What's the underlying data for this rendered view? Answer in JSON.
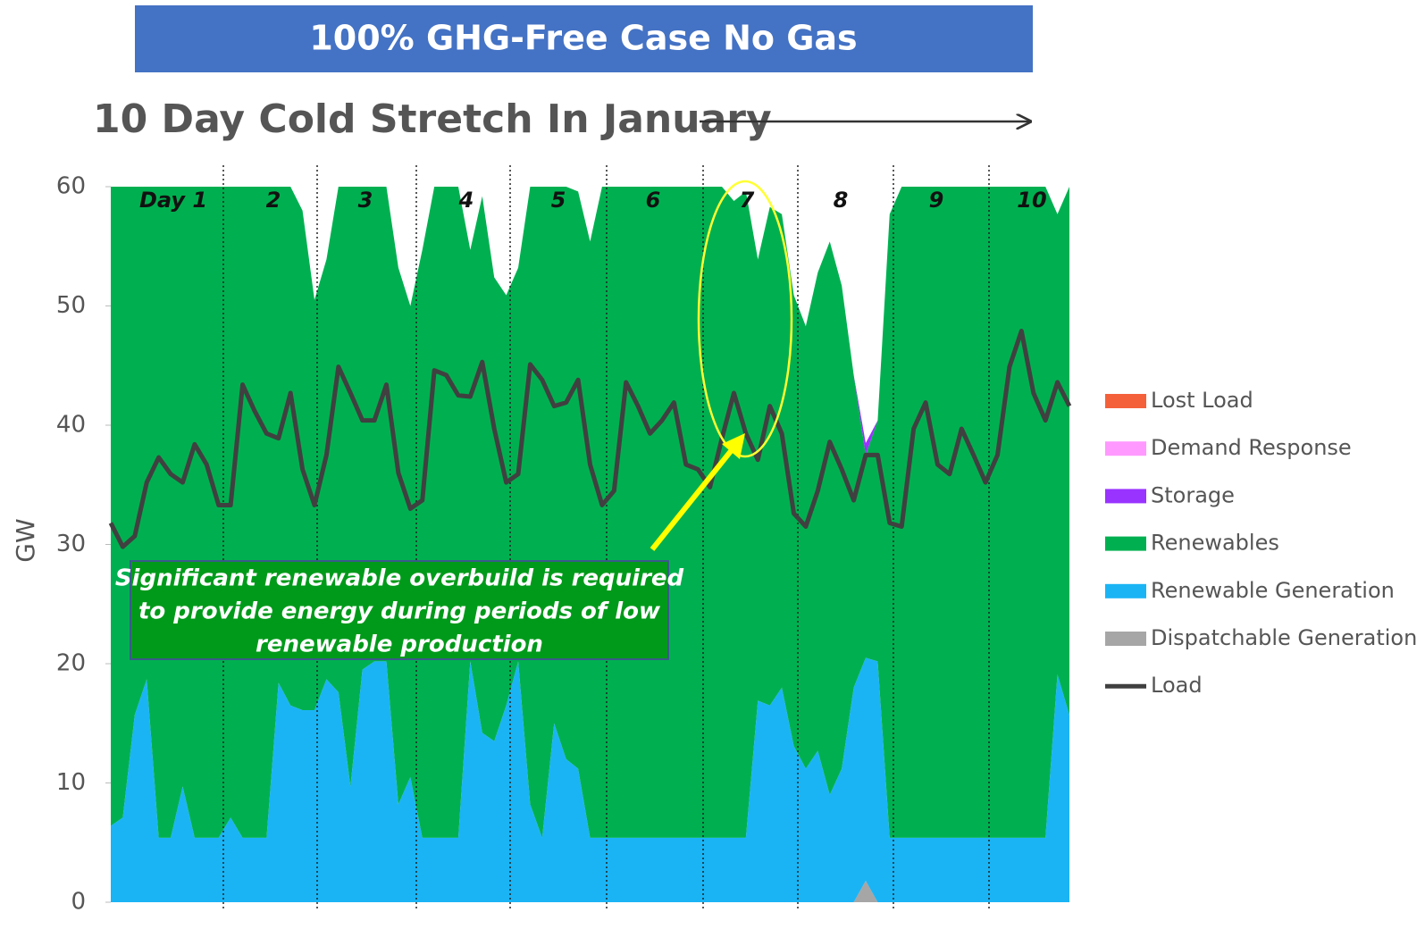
{
  "chart_data": {
    "type": "stacked_area",
    "title": "100% GHG-Free Case No Gas",
    "subtitle": "10 Day Cold Stretch In January",
    "ylabel": "GW",
    "ylim": [
      0,
      60
    ],
    "yticks": [
      0,
      10,
      20,
      30,
      40,
      50,
      60
    ],
    "day_labels": [
      "Day 1",
      "2",
      "3",
      "4",
      "5",
      "6",
      "7",
      "8",
      "9",
      "10"
    ],
    "annotation": [
      "Significant renewable overbuild is required",
      "to provide energy during periods of low",
      "renewable production"
    ],
    "legend": "right",
    "series": [
      {
        "name": "Lost Load",
        "color": "#f4603a",
        "type": "area",
        "values": [
          0,
          0,
          0,
          0,
          0,
          0,
          0,
          0,
          0,
          0,
          0,
          0,
          0,
          0,
          0,
          0,
          0,
          0,
          0,
          0,
          0,
          0,
          0,
          0,
          0,
          0,
          0,
          0,
          0,
          0,
          0,
          0,
          0,
          0,
          0,
          0,
          0,
          0,
          0,
          0,
          0,
          0,
          0,
          0,
          0,
          0,
          0,
          0,
          0,
          0,
          0,
          0,
          0,
          0,
          0,
          0,
          0,
          0,
          0,
          0,
          0,
          0,
          0,
          0,
          0,
          0,
          0,
          0,
          0,
          0,
          0,
          0,
          0,
          0,
          0,
          0,
          0,
          0,
          0,
          0,
          0
        ]
      },
      {
        "name": "Demand Response",
        "color": "#ff99ff",
        "type": "area",
        "values": [
          0,
          0,
          0,
          0,
          0,
          0,
          0,
          0,
          0,
          0,
          0,
          0,
          0,
          0,
          0,
          0,
          0,
          0,
          0,
          0,
          0,
          0,
          0,
          0,
          0,
          0,
          0,
          0,
          0,
          0,
          0,
          0,
          0,
          0,
          0,
          0,
          0,
          0,
          0,
          0,
          0,
          0,
          0,
          0,
          0,
          0,
          0,
          0,
          0,
          0,
          0,
          0,
          0,
          0,
          0,
          0,
          0,
          0,
          0,
          0,
          0,
          0,
          0,
          0,
          0,
          0,
          0,
          0,
          0,
          0,
          0,
          0,
          0,
          0,
          0,
          0,
          0,
          0,
          0,
          0,
          0
        ]
      },
      {
        "name": "Storage",
        "color": "#9933ff",
        "type": "area",
        "values": [
          0,
          0,
          0,
          0,
          0,
          0,
          0,
          0,
          0,
          0,
          0,
          0,
          0,
          0,
          0,
          0,
          0,
          0,
          0,
          0,
          0,
          0,
          0,
          0,
          0,
          0,
          0,
          0,
          0,
          0,
          0,
          0,
          0,
          0,
          0,
          0,
          0,
          0,
          0,
          0,
          0,
          0,
          0,
          0,
          0,
          0,
          0,
          0,
          0,
          0,
          0,
          0,
          0,
          0,
          0,
          0,
          0,
          0,
          0,
          0,
          0,
          0,
          0,
          1.0,
          0,
          0,
          0,
          0,
          0,
          0,
          0,
          0,
          0,
          0,
          0,
          0,
          0,
          0,
          0,
          0,
          0
        ]
      },
      {
        "name": "Renewables",
        "color": "#00b050",
        "type": "area",
        "values": [
          53.6,
          52.9,
          44.3,
          41.3,
          54.6,
          54.6,
          50.3,
          54.6,
          54.6,
          54.6,
          52.9,
          54.6,
          54.6,
          54.6,
          41.6,
          43.5,
          41.9,
          34.4,
          35.2,
          42.4,
          50.3,
          40.5,
          39.8,
          39.8,
          45.0,
          39.5,
          49.3,
          54.6,
          54.6,
          54.6,
          34.5,
          45.0,
          38.9,
          34.4,
          33.0,
          51.8,
          54.6,
          45.0,
          48.0,
          48.4,
          50.0,
          54.6,
          54.6,
          54.6,
          54.6,
          54.6,
          54.6,
          54.6,
          54.6,
          54.6,
          54.6,
          54.6,
          53.4,
          54.2,
          37.0,
          41.8,
          39.7,
          37.8,
          37.1,
          40.1,
          46.4,
          40.5,
          26.2,
          17.0,
          20.2,
          52.3,
          54.6,
          54.6,
          54.6,
          54.6,
          54.6,
          54.6,
          54.6,
          54.6,
          54.6,
          54.6,
          54.6,
          54.6,
          54.6,
          38.6,
          44.3
        ]
      },
      {
        "name": "Renewable Generation",
        "color": "#1ab4f5",
        "type": "area",
        "values": [
          6.4,
          7.1,
          15.7,
          18.7,
          5.4,
          5.4,
          9.7,
          5.4,
          5.4,
          5.4,
          7.1,
          5.4,
          5.4,
          5.4,
          18.4,
          16.5,
          16.1,
          16.1,
          18.7,
          17.6,
          9.7,
          19.5,
          20.2,
          20.2,
          8.2,
          10.5,
          5.4,
          5.4,
          5.4,
          5.4,
          20.2,
          14.2,
          13.5,
          16.5,
          20.2,
          8.2,
          5.4,
          15.0,
          12.0,
          11.2,
          5.4,
          5.4,
          5.4,
          5.4,
          5.4,
          5.4,
          5.4,
          5.4,
          5.4,
          5.4,
          5.4,
          5.4,
          5.4,
          5.4,
          16.9,
          16.5,
          18.0,
          13.1,
          11.2,
          12.7,
          9.0,
          11.2,
          18.0,
          18.7,
          20.2,
          5.4,
          5.4,
          5.4,
          5.4,
          5.4,
          5.4,
          5.4,
          5.4,
          5.4,
          5.4,
          5.4,
          5.4,
          5.4,
          5.4,
          19.1,
          15.7
        ]
      },
      {
        "name": "Dispatchable Generation",
        "color": "#a6a6a6",
        "type": "area",
        "values": [
          0,
          0,
          0,
          0,
          0,
          0,
          0,
          0,
          0,
          0,
          0,
          0,
          0,
          0,
          0,
          0,
          0,
          0,
          0,
          0,
          0,
          0,
          0,
          0,
          0,
          0,
          0,
          0,
          0,
          0,
          0,
          0,
          0,
          0,
          0,
          0,
          0,
          0,
          0,
          0,
          0,
          0,
          0,
          0,
          0,
          0,
          0,
          0,
          0,
          0,
          0,
          0,
          0,
          0,
          0,
          0,
          0,
          0,
          0,
          0,
          0,
          0,
          0,
          1.8,
          0,
          0,
          0,
          0,
          0,
          0,
          0,
          0,
          0,
          0,
          0,
          0,
          0,
          0,
          0,
          0,
          0
        ]
      },
      {
        "name": "Load",
        "color": "#404040",
        "type": "line",
        "values": [
          31.8,
          29.8,
          30.7,
          35.2,
          37.3,
          35.9,
          35.2,
          38.4,
          36.7,
          33.3,
          33.3,
          43.4,
          41.2,
          39.3,
          38.9,
          42.7,
          36.3,
          33.3,
          37.5,
          44.9,
          42.7,
          40.4,
          40.4,
          43.4,
          36.0,
          33.0,
          33.7,
          44.6,
          44.2,
          42.5,
          42.4,
          45.3,
          39.7,
          35.2,
          35.9,
          45.1,
          43.8,
          41.6,
          41.9,
          43.8,
          36.7,
          33.3,
          34.5,
          43.6,
          41.6,
          39.3,
          40.4,
          41.9,
          36.7,
          36.3,
          34.8,
          38.9,
          42.7,
          39.3,
          37.1,
          41.6,
          39.3,
          32.6,
          31.5,
          34.5,
          38.6,
          36.3,
          33.7,
          37.5,
          37.5,
          31.8,
          31.5,
          39.7,
          41.9,
          36.7,
          35.9,
          39.7,
          37.5,
          35.2,
          37.5,
          44.9,
          47.9,
          42.7,
          40.4,
          43.6,
          41.6
        ]
      }
    ]
  }
}
